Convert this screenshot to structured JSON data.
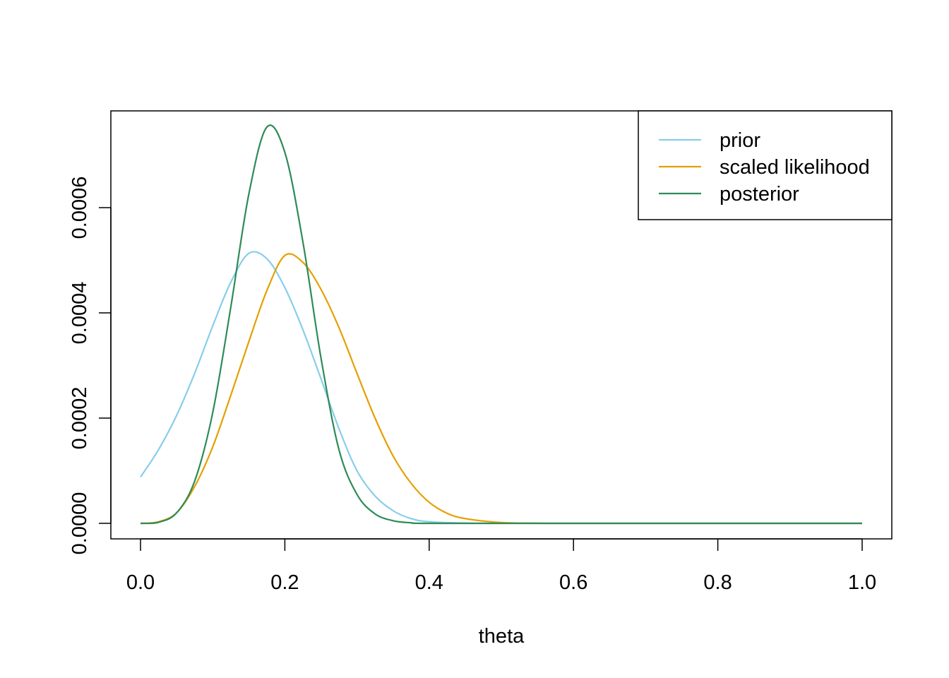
{
  "chart_data": {
    "type": "line",
    "title": "",
    "xlabel": "theta",
    "ylabel": "",
    "xlim": [
      0.0,
      1.0
    ],
    "ylim": [
      0.0,
      0.00076
    ],
    "x_ticks": [
      "0.0",
      "0.2",
      "0.4",
      "0.6",
      "0.8",
      "1.0"
    ],
    "y_ticks": [
      "0.0000",
      "0.0002",
      "0.0004",
      "0.0006"
    ],
    "grid": false,
    "legend_position": "top-right",
    "series": [
      {
        "name": "prior",
        "color": "#87CEEB",
        "points": [
          [
            0.0,
            8.8e-05
          ],
          [
            0.025,
            0.00014
          ],
          [
            0.05,
            0.000205
          ],
          [
            0.075,
            0.000285
          ],
          [
            0.1,
            0.000375
          ],
          [
            0.125,
            0.000458
          ],
          [
            0.15,
            0.000513
          ],
          [
            0.175,
            0.000503
          ],
          [
            0.2,
            0.000448
          ],
          [
            0.225,
            0.000368
          ],
          [
            0.25,
            0.000275
          ],
          [
            0.275,
            0.00018
          ],
          [
            0.3,
            0.0001
          ],
          [
            0.325,
            5.2e-05
          ],
          [
            0.35,
            2.4e-05
          ],
          [
            0.375,
            9e-06
          ],
          [
            0.4,
            3e-06
          ],
          [
            0.45,
            4e-07
          ],
          [
            0.5,
            0.0
          ],
          [
            0.6,
            0.0
          ],
          [
            0.8,
            0.0
          ],
          [
            1.0,
            0.0
          ]
        ]
      },
      {
        "name": "scaled likelihood",
        "color": "#E69F00",
        "points": [
          [
            0.0,
            0.0
          ],
          [
            0.025,
            3e-06
          ],
          [
            0.05,
            2e-05
          ],
          [
            0.075,
            7e-05
          ],
          [
            0.1,
            0.000145
          ],
          [
            0.125,
            0.000243
          ],
          [
            0.15,
            0.000345
          ],
          [
            0.175,
            0.000442
          ],
          [
            0.2,
            0.000509
          ],
          [
            0.225,
            0.000496
          ],
          [
            0.25,
            0.000445
          ],
          [
            0.275,
            0.000372
          ],
          [
            0.3,
            0.000285
          ],
          [
            0.325,
            0.0002
          ],
          [
            0.35,
            0.000128
          ],
          [
            0.375,
            7.6e-05
          ],
          [
            0.4,
            4e-05
          ],
          [
            0.425,
            1.9e-05
          ],
          [
            0.45,
            9e-06
          ],
          [
            0.5,
            1.5e-06
          ],
          [
            0.55,
            2e-07
          ],
          [
            0.6,
            0.0
          ],
          [
            0.8,
            0.0
          ],
          [
            1.0,
            0.0
          ]
        ]
      },
      {
        "name": "posterior",
        "color": "#2E8B57",
        "points": [
          [
            0.0,
            0.0
          ],
          [
            0.025,
            2e-06
          ],
          [
            0.05,
            2e-05
          ],
          [
            0.075,
            8e-05
          ],
          [
            0.1,
            0.00021
          ],
          [
            0.125,
            0.00041
          ],
          [
            0.15,
            0.000625
          ],
          [
            0.175,
            0.000753
          ],
          [
            0.2,
            0.000705
          ],
          [
            0.225,
            0.000535
          ],
          [
            0.25,
            0.000315
          ],
          [
            0.275,
            0.00014
          ],
          [
            0.3,
            5.5e-05
          ],
          [
            0.325,
            1.8e-05
          ],
          [
            0.35,
            5e-06
          ],
          [
            0.375,
            1e-06
          ],
          [
            0.4,
            0.0
          ],
          [
            0.6,
            0.0
          ],
          [
            0.8,
            0.0
          ],
          [
            1.0,
            0.0
          ]
        ]
      }
    ]
  }
}
